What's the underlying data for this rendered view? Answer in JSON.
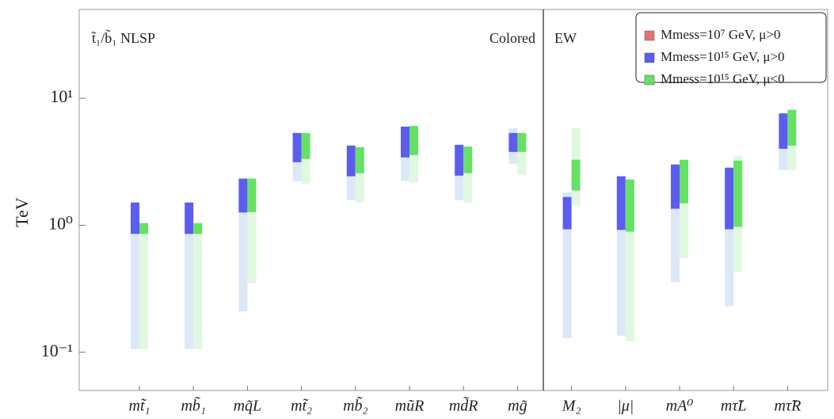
{
  "chart_data": {
    "type": "floating_bar",
    "y_label": "TeV",
    "log_y": true,
    "ylim": [
      0.05,
      50
    ],
    "yticks": [
      {
        "value": 0.1,
        "label": "10⁻¹"
      },
      {
        "value": 1,
        "label": "10⁰"
      },
      {
        "value": 10,
        "label": "10¹"
      }
    ],
    "annotations": [
      "t̃₁/b̃₁ NLSP",
      "Colored",
      "EW"
    ],
    "categories": [
      "mt̃₁",
      "mb̃₁",
      "mq̃L",
      "mt̃₂",
      "mb̃₂",
      "mũR",
      "md̃R",
      "mg̃",
      "M₂",
      "|μ|",
      "mA⁰",
      "mτ̃L",
      "mτ̃R"
    ],
    "legend_position": "upper right",
    "series": [
      {
        "name": "Mmess=10⁷ GeV, μ>0",
        "color": "#e07575",
        "light_color": "#f6d5d5",
        "values": [
          null,
          null,
          null,
          null,
          null,
          null,
          null,
          null,
          null,
          null,
          null,
          null,
          null
        ],
        "full_range": [
          null,
          null,
          null,
          null,
          null,
          null,
          null,
          null,
          null,
          null,
          null,
          null,
          null
        ]
      },
      {
        "name": "Mmess=10¹⁵ GeV, μ>0",
        "color": "#5c5cf0",
        "light_color": "#dce8f8",
        "values": [
          [
            0.855,
            1.51
          ],
          [
            0.855,
            1.51
          ],
          [
            1.26,
            2.33
          ],
          [
            3.14,
            5.33
          ],
          [
            2.43,
            4.24
          ],
          [
            3.42,
            5.98
          ],
          [
            2.46,
            4.3
          ],
          [
            3.78,
            5.33
          ],
          [
            0.93,
            1.67
          ],
          [
            0.92,
            2.43
          ],
          [
            1.35,
            3.01
          ],
          [
            0.93,
            2.84
          ],
          [
            4.0,
            7.6
          ]
        ],
        "full_range": [
          [
            0.106,
            1.51
          ],
          [
            0.106,
            1.51
          ],
          [
            0.21,
            2.33
          ],
          [
            2.23,
            5.33
          ],
          [
            1.58,
            4.24
          ],
          [
            2.23,
            5.98
          ],
          [
            1.58,
            4.3
          ],
          [
            3.05,
            5.8
          ],
          [
            0.129,
            1.82
          ],
          [
            0.135,
            2.43
          ],
          [
            0.357,
            3.01
          ],
          [
            0.23,
            2.84
          ],
          [
            2.72,
            7.6
          ]
        ]
      },
      {
        "name": "Mmess=10¹⁵ GeV, μ<0",
        "color": "#66e066",
        "light_color": "#e0f7e0",
        "values": [
          [
            0.855,
            1.04
          ],
          [
            0.855,
            1.04
          ],
          [
            1.27,
            2.33
          ],
          [
            3.33,
            5.33
          ],
          [
            2.57,
            4.12
          ],
          [
            3.57,
            6.06
          ],
          [
            2.57,
            4.17
          ],
          [
            3.78,
            5.33
          ],
          [
            1.88,
            3.28
          ],
          [
            0.89,
            2.29
          ],
          [
            1.49,
            3.28
          ],
          [
            0.97,
            3.23
          ],
          [
            4.24,
            8.1
          ]
        ],
        "full_range": [
          [
            0.106,
            1.04
          ],
          [
            0.106,
            1.04
          ],
          [
            0.35,
            2.33
          ],
          [
            2.13,
            5.33
          ],
          [
            1.51,
            4.12
          ],
          [
            2.16,
            6.06
          ],
          [
            1.51,
            4.17
          ],
          [
            2.5,
            5.33
          ],
          [
            1.43,
            5.8
          ],
          [
            0.122,
            2.29
          ],
          [
            0.55,
            3.28
          ],
          [
            0.43,
            3.5
          ],
          [
            2.72,
            8.1
          ]
        ]
      }
    ]
  }
}
